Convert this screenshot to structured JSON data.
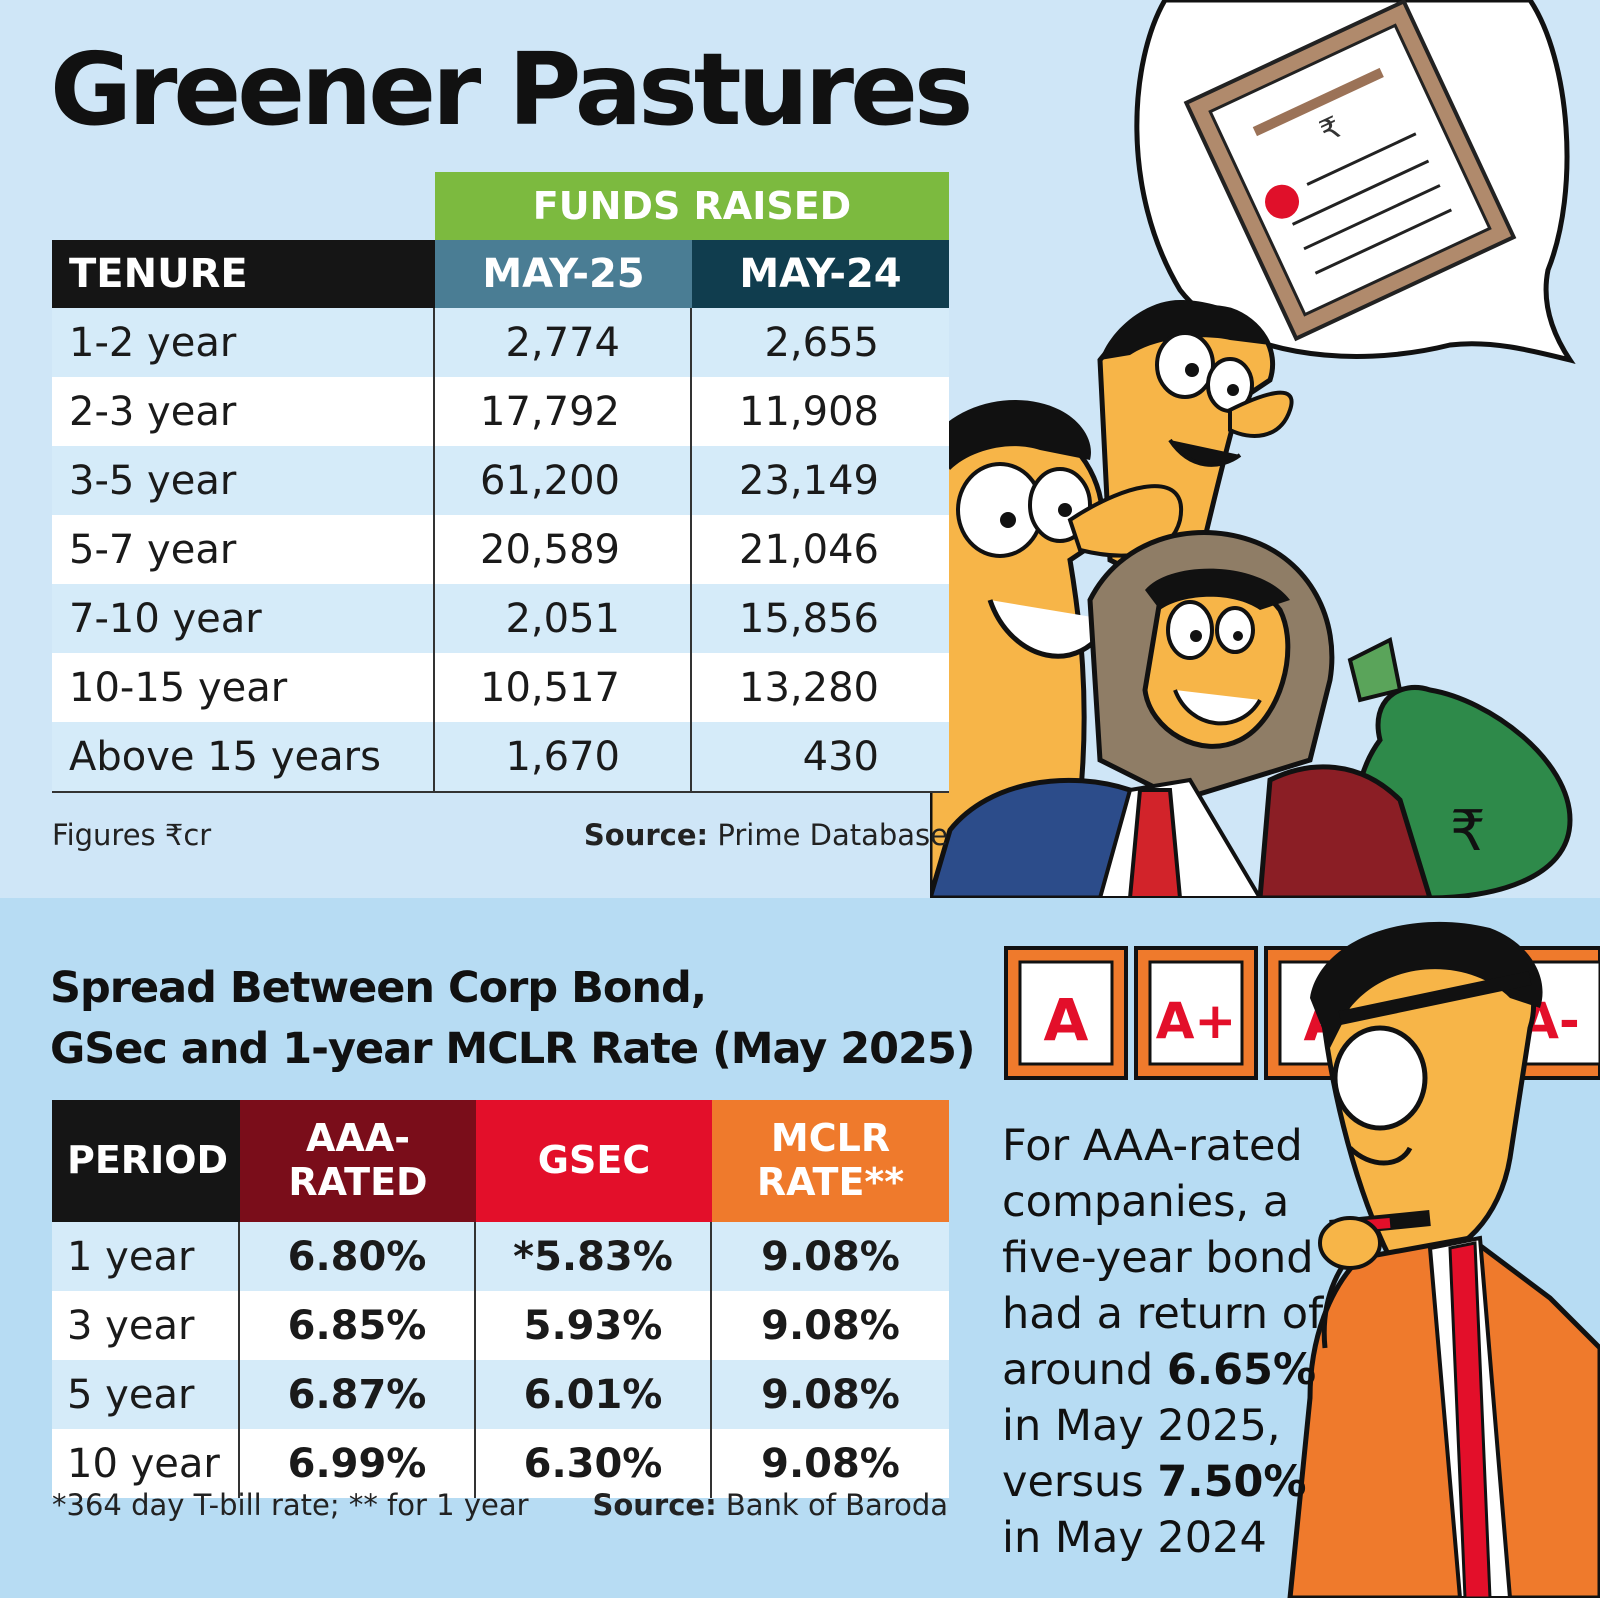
{
  "headline": "Greener Pastures",
  "colors": {
    "background_top": "#cfe6f7",
    "background_bottom": "#b7dcf3",
    "funds_raised_header": "#7cba3f",
    "may25_header": "#4a7d94",
    "may24_header": "#103d4e",
    "aaa_header": "#7a0d1a",
    "gsec_header": "#e30f2a",
    "mclr_header": "#ef7a2c"
  },
  "funds_table": {
    "group_header": "FUNDS RAISED",
    "columns": [
      "TENURE",
      "MAY-25",
      "MAY-24"
    ],
    "rows": [
      {
        "tenure": "1-2 year",
        "may25": "2,774",
        "may24": "2,655"
      },
      {
        "tenure": "2-3 year",
        "may25": "17,792",
        "may24": "11,908"
      },
      {
        "tenure": "3-5 year",
        "may25": "61,200",
        "may24": "23,149"
      },
      {
        "tenure": "5-7 year",
        "may25": "20,589",
        "may24": "21,046"
      },
      {
        "tenure": "7-10 year",
        "may25": "2,051",
        "may24": "15,856"
      },
      {
        "tenure": "10-15 year",
        "may25": "10,517",
        "may24": "13,280"
      },
      {
        "tenure": "Above 15 years",
        "may25": "1,670",
        "may24": "430"
      }
    ],
    "footnote": "Figures ₹cr",
    "source_label": "Source:",
    "source": "Prime Database"
  },
  "spread_table": {
    "title_line1": "Spread Between Corp Bond,",
    "title_line2": "GSec and 1-year MCLR Rate (May 2025)",
    "columns": {
      "period": "PERIOD",
      "aaa_line1": "AAA-",
      "aaa_line2": "RATED",
      "gsec": "GSEC",
      "mclr_line1": "MCLR",
      "mclr_line2": "RATE**"
    },
    "rows": [
      {
        "period": "1 year",
        "aaa": "6.80%",
        "gsec": "*5.83%",
        "mclr": "9.08%"
      },
      {
        "period": "3 year",
        "aaa": "6.85%",
        "gsec": "5.93%",
        "mclr": "9.08%"
      },
      {
        "period": "5 year",
        "aaa": "6.87%",
        "gsec": "6.01%",
        "mclr": "9.08%"
      },
      {
        "period": "10 year",
        "aaa": "6.99%",
        "gsec": "6.30%",
        "mclr": "9.08%"
      }
    ],
    "footnote": "*364 day T-bill rate; ** for 1 year",
    "source_label": "Source:",
    "source": "Bank of Baroda"
  },
  "callout": {
    "line1": "For AAA-rated",
    "line2": "companies, a",
    "line3": "five-year bond",
    "line4": "had a return of",
    "line5_prefix": "around ",
    "line5_value": "6.65%",
    "line6": "in May 2025,",
    "line7_prefix": "versus ",
    "line7_value": "7.50%",
    "line8": "in May 2024"
  },
  "illustration": {
    "rupee_symbol": "₹",
    "grade_cards": [
      "A",
      "A+",
      "A",
      "A-"
    ]
  },
  "chart_data": [
    {
      "type": "table",
      "title": "Greener Pastures",
      "group_header": "FUNDS RAISED",
      "unit": "₹cr",
      "columns": [
        "TENURE",
        "MAY-25",
        "MAY-24"
      ],
      "categories": [
        "1-2 year",
        "2-3 year",
        "3-5 year",
        "5-7 year",
        "7-10 year",
        "10-15 year",
        "Above 15 years"
      ],
      "series": [
        {
          "name": "MAY-25",
          "values": [
            2774,
            17792,
            61200,
            20589,
            2051,
            10517,
            1670
          ]
        },
        {
          "name": "MAY-24",
          "values": [
            2655,
            11908,
            23149,
            21046,
            15856,
            13280,
            430
          ]
        }
      ]
    },
    {
      "type": "table",
      "title": "Spread Between Corp Bond, GSec and 1-year MCLR Rate (May 2025)",
      "columns": [
        "PERIOD",
        "AAA-RATED",
        "GSEC",
        "MCLR RATE**"
      ],
      "categories": [
        "1 year",
        "3 year",
        "5 year",
        "10 year"
      ],
      "series": [
        {
          "name": "AAA-RATED",
          "values": [
            6.8,
            6.85,
            6.87,
            6.99
          ]
        },
        {
          "name": "GSEC",
          "values": [
            5.83,
            5.93,
            6.01,
            6.3
          ]
        },
        {
          "name": "MCLR RATE**",
          "values": [
            9.08,
            9.08,
            9.08,
            9.08
          ]
        }
      ]
    }
  ]
}
